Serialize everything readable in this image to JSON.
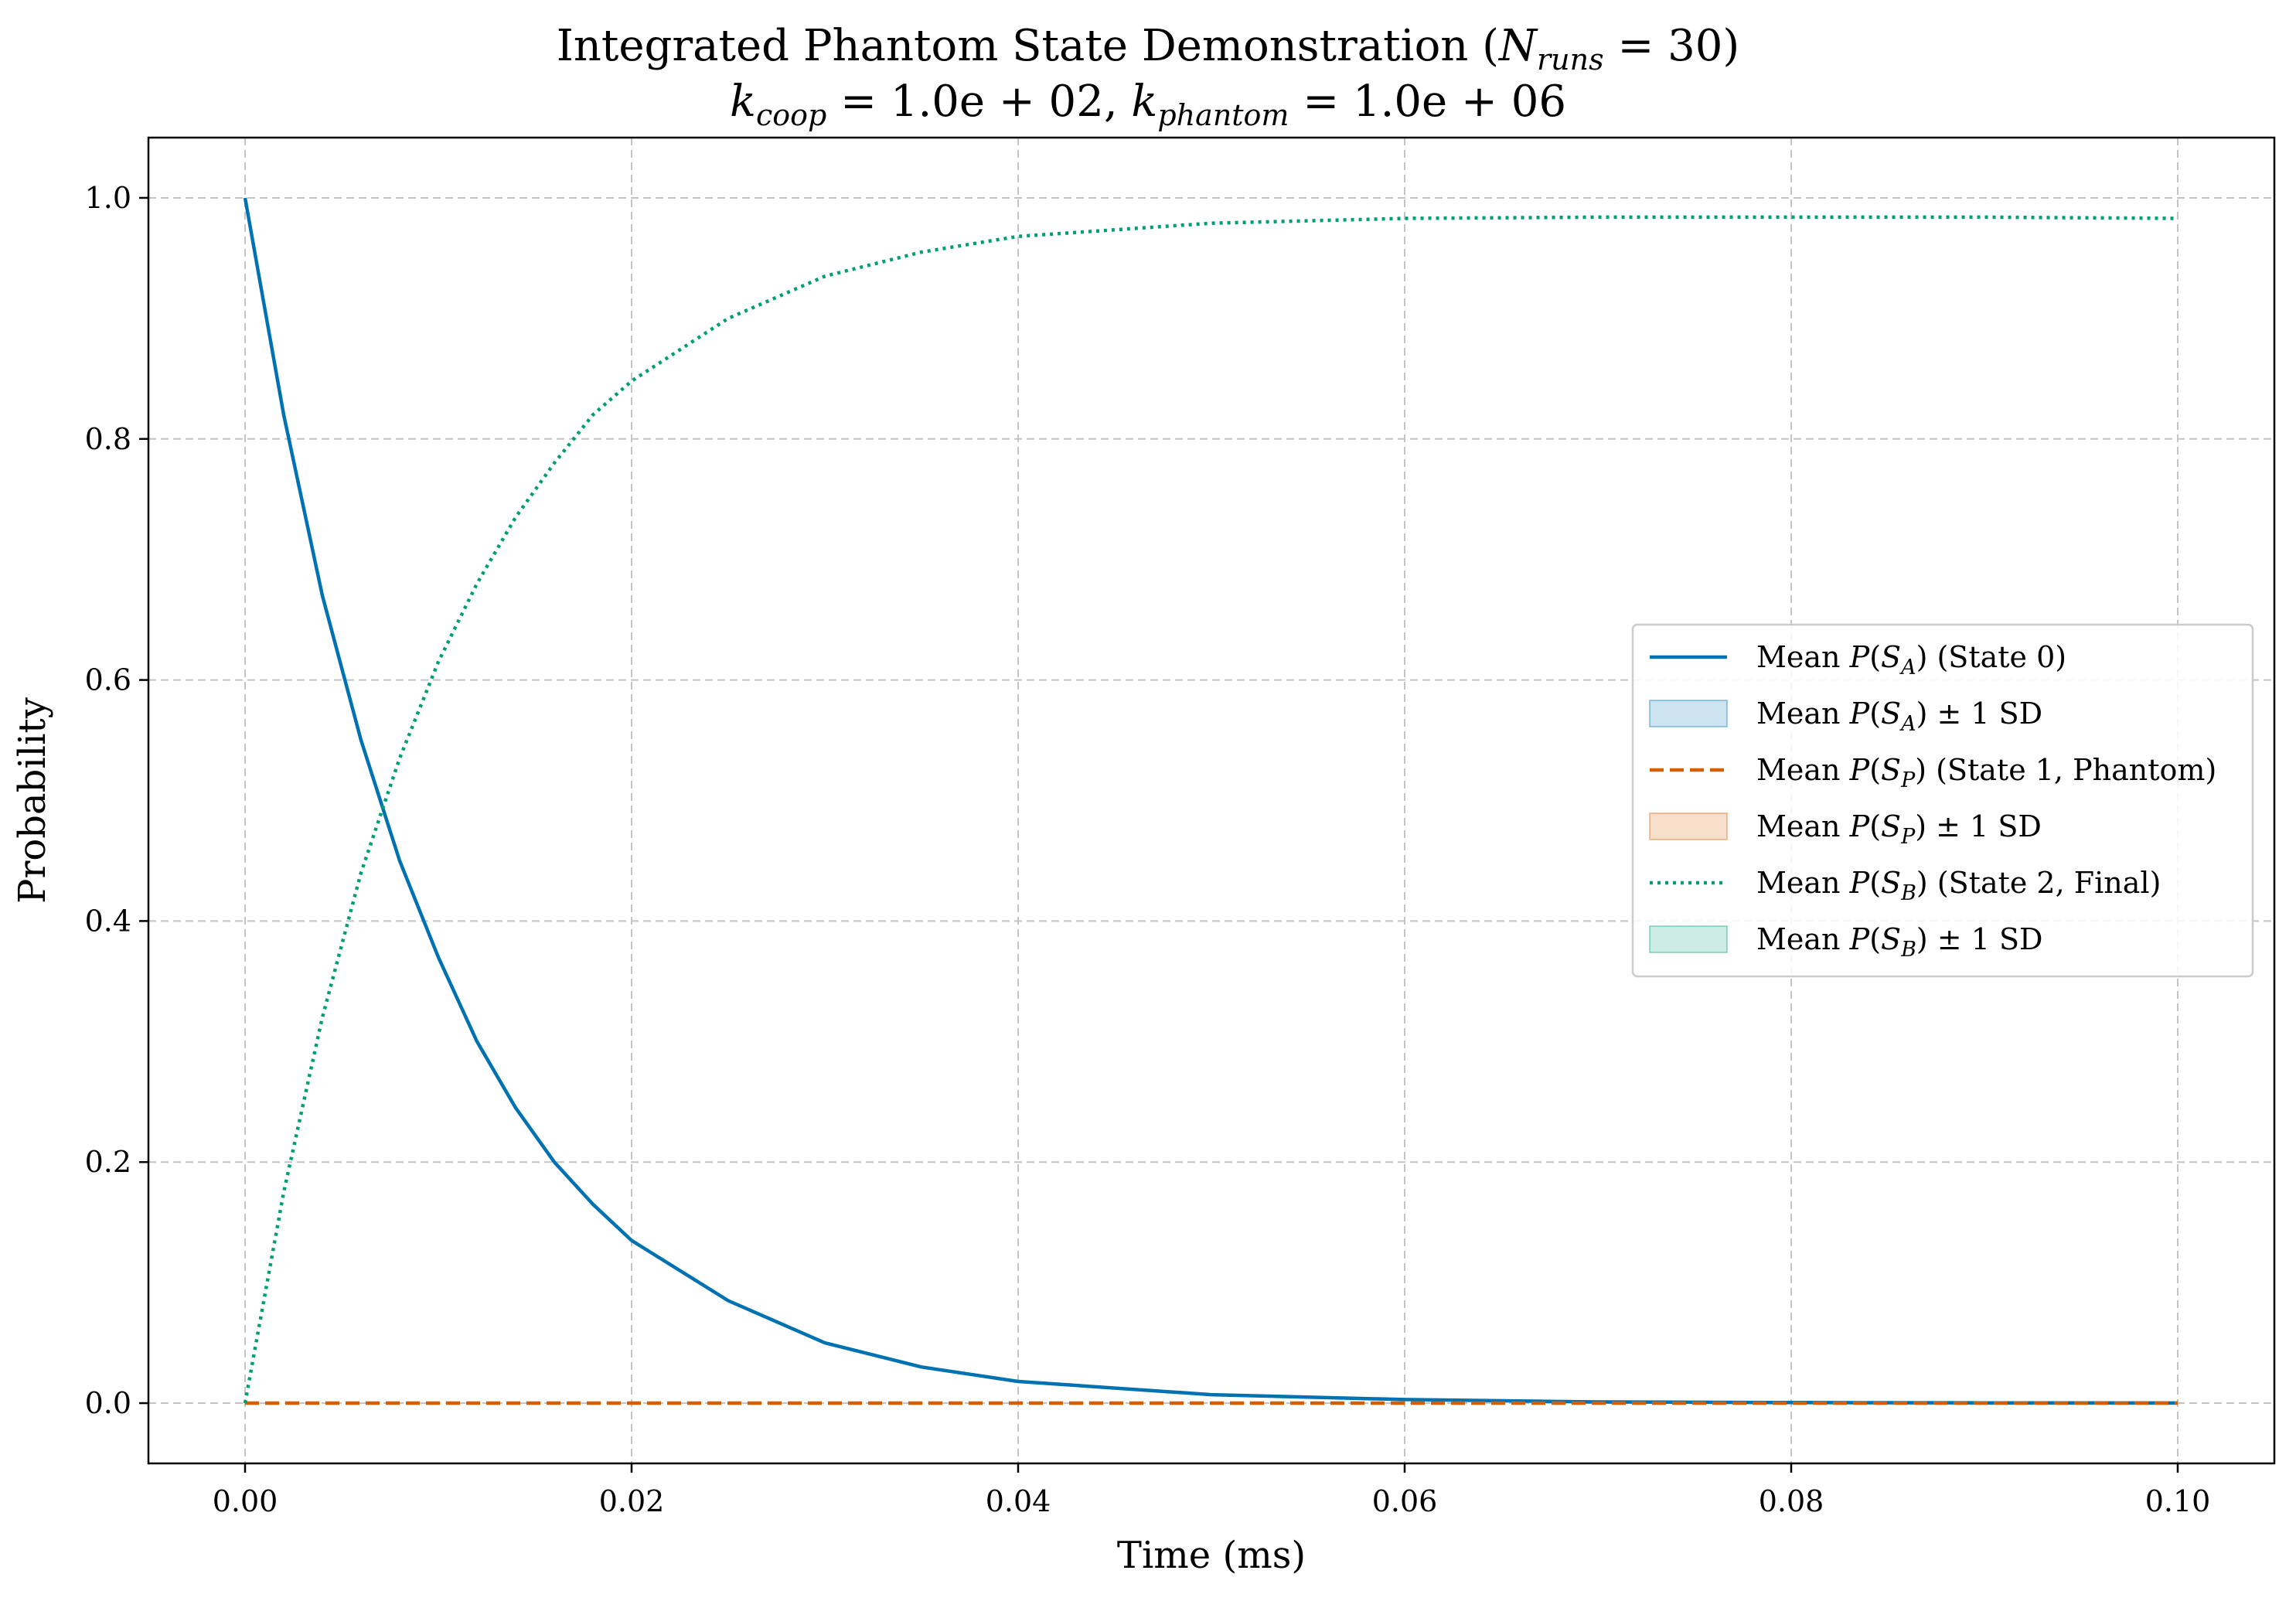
{
  "chart_data": {
    "type": "line",
    "title_line1": {
      "main": "Integrated Phantom State Demonstration (",
      "var": "N",
      "sub": "runs",
      "rest": " = 30)"
    },
    "title_line2": {
      "k1": "k",
      "k1_sub": "coop",
      "k1_val": " = 1.0e + 02, ",
      "k2": "k",
      "k2_sub": "phantom",
      "k2_val": " = 1.0e + 06"
    },
    "xlabel": "Time (ms)",
    "ylabel": "Probability",
    "xlim": [
      -0.005,
      0.105
    ],
    "ylim": [
      -0.05,
      1.05
    ],
    "xticks": [
      0.0,
      0.02,
      0.04,
      0.06,
      0.08,
      0.1
    ],
    "xtick_labels": [
      "0.00",
      "0.02",
      "0.04",
      "0.06",
      "0.08",
      "0.10"
    ],
    "yticks": [
      0.0,
      0.2,
      0.4,
      0.6,
      0.8,
      1.0
    ],
    "ytick_labels": [
      "0.0",
      "0.2",
      "0.4",
      "0.6",
      "0.8",
      "1.0"
    ],
    "grid": true,
    "legend_position": "center-right",
    "series": [
      {
        "name": "Mean P(S_A) (State 0)",
        "color": "#0072B2",
        "style": "solid",
        "x": [
          0.0,
          0.002,
          0.004,
          0.006,
          0.008,
          0.01,
          0.012,
          0.014,
          0.016,
          0.018,
          0.02,
          0.025,
          0.03,
          0.035,
          0.04,
          0.05,
          0.06,
          0.07,
          0.08,
          0.09,
          0.1
        ],
        "y": [
          1.0,
          0.82,
          0.67,
          0.55,
          0.45,
          0.37,
          0.3,
          0.245,
          0.2,
          0.165,
          0.135,
          0.085,
          0.05,
          0.03,
          0.018,
          0.007,
          0.003,
          0.001,
          0.0005,
          0.0002,
          0.0001
        ]
      },
      {
        "name": "Mean P(S_A) ± 1 SD",
        "color": "#0072B2",
        "style": "band"
      },
      {
        "name": "Mean P(S_P) (State 1, Phantom)",
        "color": "#D55E00",
        "style": "dashed",
        "x": [
          0.0,
          0.1
        ],
        "y": [
          0.0,
          0.0
        ]
      },
      {
        "name": "Mean P(S_P) ± 1 SD",
        "color": "#D55E00",
        "style": "band"
      },
      {
        "name": "Mean P(S_B) (State 2, Final)",
        "color": "#009E73",
        "style": "dotted",
        "x": [
          0.0,
          0.002,
          0.004,
          0.006,
          0.008,
          0.01,
          0.012,
          0.014,
          0.016,
          0.018,
          0.02,
          0.025,
          0.03,
          0.035,
          0.04,
          0.05,
          0.06,
          0.07,
          0.08,
          0.09,
          0.1
        ],
        "y": [
          0.0,
          0.175,
          0.32,
          0.44,
          0.535,
          0.615,
          0.68,
          0.735,
          0.78,
          0.82,
          0.848,
          0.9,
          0.935,
          0.955,
          0.968,
          0.979,
          0.983,
          0.984,
          0.984,
          0.984,
          0.983
        ]
      },
      {
        "name": "Mean P(S_B) ± 1 SD",
        "color": "#009E73",
        "style": "band"
      }
    ],
    "legend": [
      {
        "kind": "line",
        "color": "#0072B2",
        "style": "solid",
        "pre": "Mean ",
        "sym": "S",
        "sub": "A",
        "post": ") (State 0)"
      },
      {
        "kind": "band",
        "color": "#0072B2",
        "pre": "Mean ",
        "sym": "S",
        "sub": "A",
        "post": ") ± 1 SD"
      },
      {
        "kind": "line",
        "color": "#D55E00",
        "style": "dashed",
        "pre": "Mean ",
        "sym": "S",
        "sub": "P",
        "post": ") (State 1, Phantom)"
      },
      {
        "kind": "band",
        "color": "#D55E00",
        "pre": "Mean ",
        "sym": "S",
        "sub": "P",
        "post": ") ± 1 SD"
      },
      {
        "kind": "line",
        "color": "#009E73",
        "style": "dotted",
        "pre": "Mean ",
        "sym": "S",
        "sub": "B",
        "post": ") (State 2, Final)"
      },
      {
        "kind": "band",
        "color": "#009E73",
        "pre": "Mean ",
        "sym": "S",
        "sub": "B",
        "post": ") ± 1 SD"
      }
    ]
  }
}
